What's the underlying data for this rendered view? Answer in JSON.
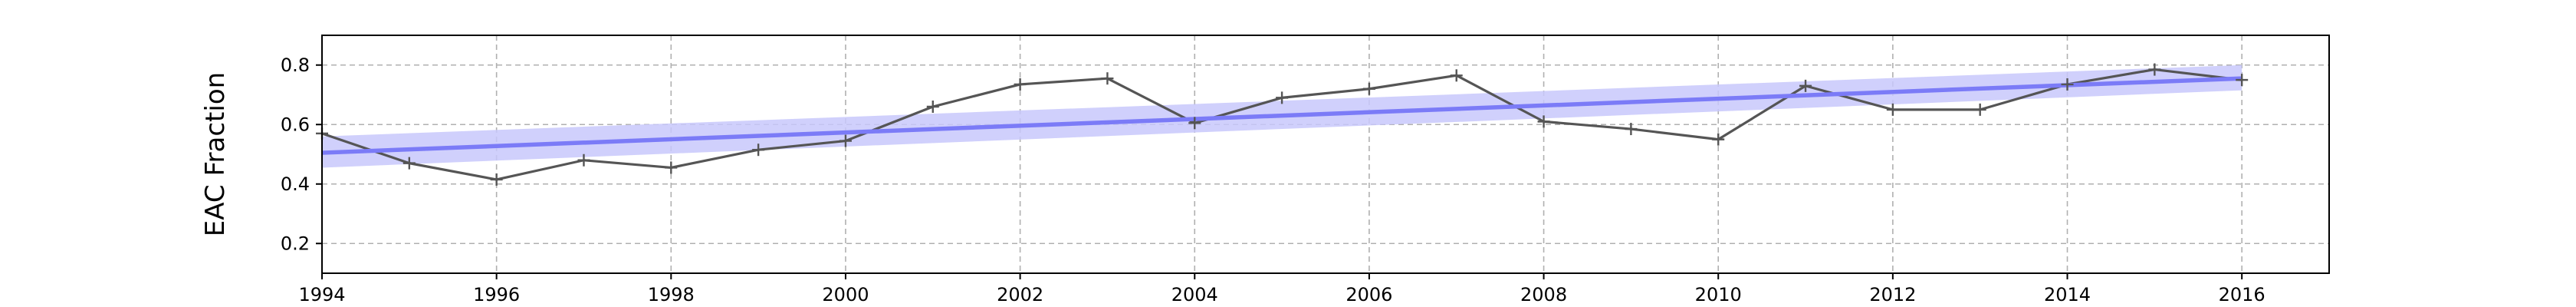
{
  "chart_data": {
    "type": "line",
    "title": "",
    "xlabel": "",
    "ylabel": "EAC Fraction",
    "xlim": [
      1994,
      2017
    ],
    "ylim": [
      0.1,
      0.9
    ],
    "x_ticks": [
      1994,
      1996,
      1998,
      2000,
      2002,
      2004,
      2006,
      2008,
      2010,
      2012,
      2014,
      2016
    ],
    "y_ticks": [
      0.2,
      0.4,
      0.6,
      0.8
    ],
    "y_tick_labels": [
      "0.2",
      "0.4",
      "0.6",
      "0.8"
    ],
    "grid": true,
    "series": [
      {
        "kind": "line-with-markers",
        "color": "#555555",
        "marker": "+",
        "x": [
          1994,
          1995,
          1996,
          1997,
          1998,
          1999,
          2000,
          2001,
          2002,
          2003,
          2004,
          2005,
          2006,
          2007,
          2008,
          2009,
          2010,
          2011,
          2012,
          2013,
          2014,
          2015,
          2016
        ],
        "y": [
          0.57,
          0.47,
          0.415,
          0.48,
          0.455,
          0.515,
          0.545,
          0.66,
          0.735,
          0.755,
          0.605,
          0.69,
          0.72,
          0.765,
          0.61,
          0.585,
          0.55,
          0.73,
          0.65,
          0.65,
          0.735,
          0.785,
          0.75
        ]
      },
      {
        "kind": "trend-with-band",
        "color": "#7b7bf7",
        "band_color": "#c8c8fb",
        "x": [
          1994,
          2016
        ],
        "y": [
          0.505,
          0.755
        ],
        "lower": [
          0.455,
          0.715
        ],
        "upper": [
          0.56,
          0.8
        ]
      }
    ]
  }
}
